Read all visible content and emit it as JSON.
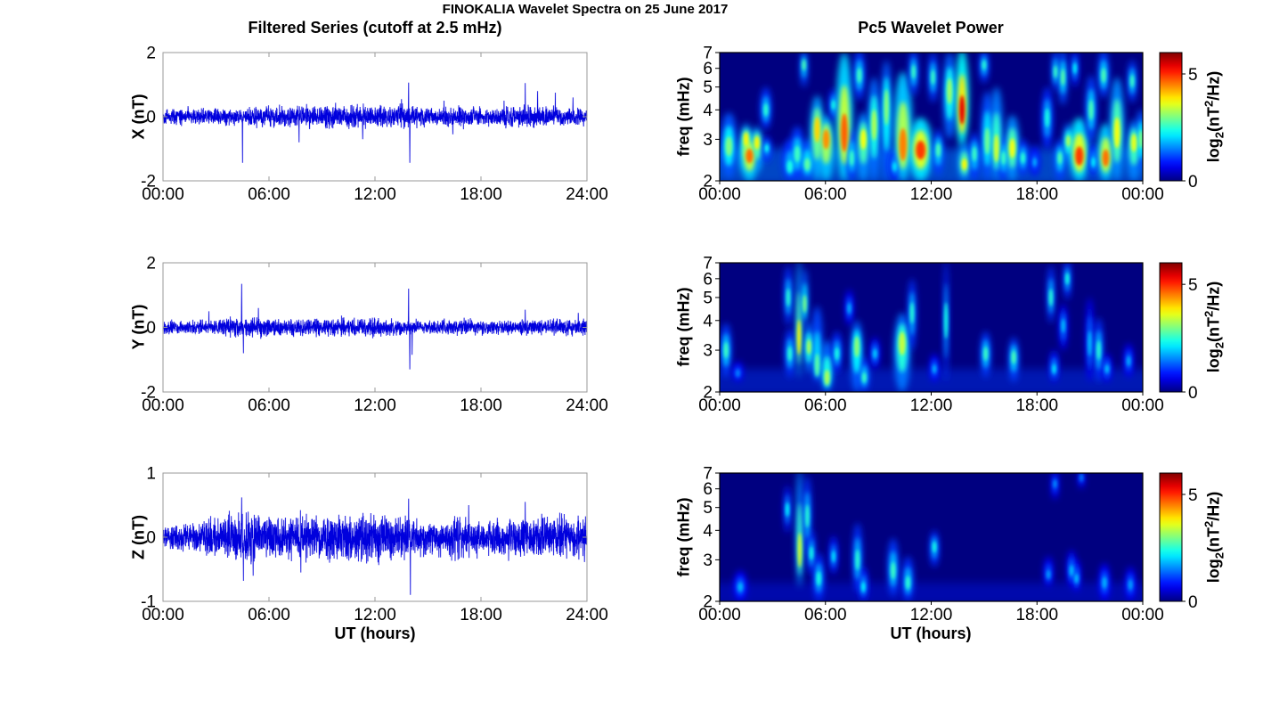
{
  "figure": {
    "title": "FINOKALIA Wavelet Spectra on 25 June 2017",
    "left_column_title": "Filtered Series (cutoff at 2.5 mHz)",
    "right_column_title": "Pc5 Wavelet Power",
    "xlabel": "UT (hours)",
    "colorbar_label": {
      "pre": "log",
      "sub": "2",
      "mid": "(nT",
      "sup": "2",
      "post": "/Hz)"
    },
    "series_color": "#0000dd",
    "heatmap_background_color": "#000080"
  },
  "chart_data": [
    {
      "id": "x-filtered-series",
      "type": "line",
      "ylabel": "X (nT)",
      "ylim": [
        -2,
        2
      ],
      "ytick_values": [
        -2,
        0,
        2
      ],
      "ytick_labels": [
        "-2",
        "0",
        "2"
      ],
      "xlim_hours": [
        0,
        24
      ],
      "xtick_hours": [
        0,
        6,
        12,
        18,
        24
      ],
      "xtick_labels": [
        "00:00",
        "06:00",
        "12:00",
        "18:00",
        "24:00"
      ],
      "line_color": "#0000dd",
      "seed": 42,
      "noise_sigma": 0.125,
      "hourly_envelope": [
        0.85,
        0.9,
        0.95,
        0.9,
        0.9,
        1.0,
        1.15,
        1.25,
        1.35,
        1.3,
        1.35,
        1.4,
        1.15,
        1.35,
        1.25,
        1.05,
        1.1,
        1.15,
        0.95,
        1.0,
        1.35,
        1.25,
        1.1,
        1.05
      ],
      "spikes": [
        [
          4.5,
          -1.44
        ],
        [
          7.7,
          -0.8
        ],
        [
          11.3,
          -0.7
        ],
        [
          13.5,
          0.55
        ],
        [
          13.9,
          1.06
        ],
        [
          13.97,
          -1.44
        ],
        [
          15.9,
          0.5
        ],
        [
          16.4,
          -0.55
        ],
        [
          19.3,
          0.5
        ],
        [
          20.5,
          1.05
        ],
        [
          21.2,
          0.8
        ],
        [
          22.2,
          0.75
        ],
        [
          23.2,
          0.6
        ]
      ]
    },
    {
      "id": "x-wavelet-power",
      "type": "heatmap",
      "ylabel": "freq (mHz)",
      "yscale": "log",
      "ylim": [
        2,
        7
      ],
      "ytick_values": [
        2,
        3,
        4,
        5,
        6,
        7
      ],
      "ytick_labels": [
        "2",
        "3",
        "4",
        "5",
        "6",
        "7"
      ],
      "xlim_hours": [
        0,
        24
      ],
      "xtick_hours": [
        0,
        6,
        12,
        18,
        24
      ],
      "xtick_labels": [
        "00:00",
        "06:00",
        "12:00",
        "18:00",
        "00:00"
      ],
      "colormap": "jet",
      "colorbar": {
        "range": [
          0,
          6
        ],
        "tick_values": [
          0,
          5
        ],
        "tick_labels": [
          "0",
          "5"
        ]
      },
      "base_band": {
        "f_lo": 2.0,
        "f_hi": 2.75,
        "value": 1.5,
        "opacity": 0.55
      },
      "features": [
        [
          0.52,
          2.05,
          3.9,
          2.8,
          3.0,
          0.45
        ],
        [
          1.5,
          2.2,
          3.5,
          3.0,
          3.8,
          0.35
        ],
        [
          1.69,
          2.0,
          3.2,
          2.55,
          4.6,
          0.5
        ],
        [
          2.11,
          2.2,
          3.4,
          2.9,
          3.8,
          0.35
        ],
        [
          2.62,
          3.3,
          5.0,
          4.0,
          2.5,
          0.3
        ],
        [
          2.67,
          2.4,
          3.1,
          2.75,
          2.3,
          0.25
        ],
        [
          3.98,
          2.0,
          3.0,
          2.3,
          2.4,
          0.4
        ],
        [
          4.4,
          2.0,
          3.4,
          2.6,
          2.6,
          0.4
        ],
        [
          4.78,
          5.0,
          7.2,
          6.2,
          2.7,
          0.2
        ],
        [
          4.97,
          2.0,
          3.0,
          2.35,
          2.8,
          0.4
        ],
        [
          5.53,
          2.0,
          4.6,
          3.3,
          4.0,
          0.4
        ],
        [
          6.04,
          2.0,
          3.8,
          3.0,
          4.4,
          0.45
        ],
        [
          6.46,
          3.6,
          4.9,
          4.2,
          2.4,
          0.25
        ],
        [
          7.07,
          2.0,
          7.0,
          3.2,
          4.7,
          0.45
        ],
        [
          7.49,
          2.0,
          3.3,
          2.5,
          2.6,
          0.3
        ],
        [
          7.92,
          4.4,
          7.2,
          5.6,
          2.6,
          0.3
        ],
        [
          8.15,
          2.0,
          3.9,
          3.0,
          3.7,
          0.4
        ],
        [
          8.76,
          2.0,
          5.5,
          3.45,
          3.3,
          0.35
        ],
        [
          9.46,
          2.0,
          6.5,
          4.1,
          3.1,
          0.3
        ],
        [
          9.93,
          2.0,
          2.7,
          2.3,
          2.1,
          0.3
        ],
        [
          10.4,
          2.0,
          5.8,
          2.85,
          4.5,
          0.5
        ],
        [
          11.0,
          4.6,
          7.2,
          5.8,
          2.6,
          0.25
        ],
        [
          11.4,
          2.0,
          3.7,
          2.7,
          4.9,
          0.65
        ],
        [
          12.1,
          4.3,
          7.0,
          5.5,
          2.6,
          0.25
        ],
        [
          12.4,
          2.1,
          3.3,
          2.7,
          2.7,
          0.3
        ],
        [
          13.04,
          3.0,
          7.0,
          4.8,
          3.2,
          0.35
        ],
        [
          13.75,
          2.8,
          7.2,
          4.0,
          5.4,
          0.35
        ],
        [
          13.88,
          2.0,
          2.9,
          2.35,
          3.8,
          0.35
        ],
        [
          14.45,
          2.0,
          3.2,
          2.6,
          2.6,
          0.3
        ],
        [
          15.0,
          5.2,
          7.2,
          6.2,
          2.5,
          0.25
        ],
        [
          15.18,
          2.0,
          4.8,
          2.95,
          2.9,
          0.35
        ],
        [
          15.7,
          2.0,
          5.0,
          2.75,
          3.5,
          0.35
        ],
        [
          16.1,
          2.0,
          3.1,
          2.5,
          2.6,
          0.3
        ],
        [
          16.6,
          2.0,
          3.8,
          2.75,
          3.7,
          0.4
        ],
        [
          17.2,
          2.1,
          3.0,
          2.5,
          2.5,
          0.3
        ],
        [
          17.87,
          2.1,
          2.8,
          2.4,
          1.8,
          0.25
        ],
        [
          18.58,
          2.7,
          5.0,
          3.7,
          2.4,
          0.3
        ],
        [
          19.05,
          4.8,
          7.2,
          5.8,
          2.6,
          0.2
        ],
        [
          19.3,
          2.0,
          3.0,
          2.5,
          2.7,
          0.3
        ],
        [
          19.47,
          4.2,
          7.2,
          5.5,
          2.8,
          0.25
        ],
        [
          19.78,
          2.4,
          3.5,
          2.95,
          3.3,
          0.3
        ],
        [
          20.15,
          5.0,
          7.2,
          6.0,
          2.2,
          0.2
        ],
        [
          20.4,
          2.0,
          3.7,
          2.55,
          4.9,
          0.55
        ],
        [
          21.07,
          2.9,
          5.6,
          4.0,
          2.7,
          0.3
        ],
        [
          21.2,
          2.1,
          2.9,
          2.4,
          2.2,
          0.25
        ],
        [
          21.78,
          4.5,
          7.2,
          5.6,
          2.7,
          0.3
        ],
        [
          21.9,
          2.0,
          3.5,
          2.5,
          4.6,
          0.45
        ],
        [
          22.54,
          2.0,
          5.5,
          3.2,
          3.7,
          0.4
        ],
        [
          23.4,
          4.3,
          6.5,
          5.3,
          2.6,
          0.25
        ],
        [
          23.5,
          2.0,
          3.6,
          2.9,
          3.6,
          0.4
        ],
        [
          23.9,
          2.2,
          4.0,
          3.0,
          3.0,
          0.3
        ]
      ]
    },
    {
      "id": "y-filtered-series",
      "type": "line",
      "ylabel": "Y (nT)",
      "ylim": [
        -2,
        2
      ],
      "ytick_values": [
        -2,
        0,
        2
      ],
      "ytick_labels": [
        "-2",
        "0",
        "2"
      ],
      "xlim_hours": [
        0,
        24
      ],
      "xtick_hours": [
        0,
        6,
        12,
        18,
        24
      ],
      "xtick_labels": [
        "00:00",
        "06:00",
        "12:00",
        "18:00",
        "24:00"
      ],
      "line_color": "#0000dd",
      "seed": 137,
      "noise_sigma": 0.105,
      "hourly_envelope": [
        0.9,
        0.85,
        0.95,
        1.05,
        1.25,
        1.4,
        1.25,
        1.15,
        1.25,
        1.15,
        1.2,
        1.3,
        1.25,
        1.1,
        1.0,
        0.95,
        1.05,
        1.15,
        1.0,
        0.9,
        1.05,
        0.95,
        1.0,
        1.1
      ],
      "spikes": [
        [
          2.6,
          0.5
        ],
        [
          4.45,
          1.35
        ],
        [
          4.55,
          -0.8
        ],
        [
          5.4,
          0.6
        ],
        [
          13.9,
          1.2
        ],
        [
          13.97,
          -1.3
        ],
        [
          14.1,
          -0.85
        ],
        [
          20.5,
          0.55
        ],
        [
          23.5,
          0.45
        ]
      ]
    },
    {
      "id": "y-wavelet-power",
      "type": "heatmap",
      "ylabel": "freq (mHz)",
      "yscale": "log",
      "ylim": [
        2,
        7
      ],
      "ytick_values": [
        2,
        3,
        4,
        5,
        6,
        7
      ],
      "ytick_labels": [
        "2",
        "3",
        "4",
        "5",
        "6",
        "7"
      ],
      "xlim_hours": [
        0,
        24
      ],
      "xtick_hours": [
        0,
        6,
        12,
        18,
        24
      ],
      "xtick_labels": [
        "00:00",
        "06:00",
        "12:00",
        "18:00",
        "00:00"
      ],
      "colormap": "jet",
      "colorbar": {
        "range": [
          0,
          6
        ],
        "tick_values": [
          0,
          5
        ],
        "tick_labels": [
          "0",
          "5"
        ]
      },
      "base_band": {
        "f_lo": 2.0,
        "f_hi": 2.5,
        "value": 1.1,
        "opacity": 0.4
      },
      "features": [
        [
          0.36,
          2.3,
          3.9,
          3.0,
          2.6,
          0.3
        ],
        [
          1.03,
          2.2,
          2.7,
          2.4,
          1.5,
          0.3
        ],
        [
          3.89,
          3.8,
          6.8,
          5.0,
          2.5,
          0.22
        ],
        [
          3.98,
          2.3,
          3.7,
          2.9,
          2.5,
          0.28
        ],
        [
          4.5,
          2.3,
          7.2,
          3.4,
          3.8,
          0.16
        ],
        [
          4.82,
          3.7,
          6.6,
          4.7,
          3.0,
          0.18
        ],
        [
          5.06,
          2.4,
          3.9,
          3.1,
          3.3,
          0.28
        ],
        [
          5.53,
          2.2,
          4.6,
          2.6,
          2.8,
          0.3
        ],
        [
          6.09,
          2.0,
          3.3,
          2.3,
          3.3,
          0.35
        ],
        [
          6.65,
          2.4,
          3.6,
          2.9,
          2.4,
          0.28
        ],
        [
          7.35,
          3.8,
          5.4,
          4.5,
          1.8,
          0.22
        ],
        [
          7.78,
          2.0,
          4.0,
          3.1,
          3.1,
          0.35
        ],
        [
          8.2,
          2.0,
          2.8,
          2.3,
          2.6,
          0.28
        ],
        [
          8.81,
          2.5,
          3.4,
          2.9,
          2.0,
          0.25
        ],
        [
          10.35,
          2.0,
          4.3,
          3.2,
          3.4,
          0.45
        ],
        [
          10.91,
          3.0,
          6.0,
          4.3,
          2.5,
          0.22
        ],
        [
          12.18,
          2.2,
          2.9,
          2.5,
          1.8,
          0.25
        ],
        [
          12.84,
          2.2,
          7.2,
          4.0,
          2.4,
          0.1
        ],
        [
          15.09,
          2.3,
          3.6,
          2.9,
          2.6,
          0.28
        ],
        [
          16.68,
          2.2,
          3.4,
          2.8,
          2.7,
          0.28
        ],
        [
          18.79,
          3.9,
          6.8,
          5.0,
          2.5,
          0.2
        ],
        [
          18.97,
          2.2,
          3.0,
          2.5,
          2.1,
          0.25
        ],
        [
          19.49,
          3.0,
          4.7,
          3.8,
          1.9,
          0.22
        ],
        [
          19.72,
          4.9,
          7.2,
          6.0,
          2.4,
          0.2
        ],
        [
          20.99,
          2.2,
          5.0,
          3.2,
          1.9,
          0.2
        ],
        [
          21.5,
          2.2,
          4.1,
          3.0,
          2.5,
          0.25
        ],
        [
          21.97,
          2.2,
          2.9,
          2.5,
          1.9,
          0.25
        ],
        [
          23.2,
          2.3,
          3.2,
          2.7,
          1.8,
          0.25
        ]
      ]
    },
    {
      "id": "z-filtered-series",
      "type": "line",
      "ylabel": "Z (nT)",
      "ylim": [
        -1,
        1
      ],
      "ytick_values": [
        -1,
        0,
        1
      ],
      "ytick_labels": [
        "-1",
        "0",
        "1"
      ],
      "xlim_hours": [
        0,
        24
      ],
      "xtick_hours": [
        0,
        6,
        12,
        18,
        24
      ],
      "xtick_labels": [
        "00:00",
        "06:00",
        "12:00",
        "18:00",
        "24:00"
      ],
      "line_color": "#0000dd",
      "seed": 2017,
      "noise_sigma": 0.12,
      "hourly_envelope": [
        0.8,
        0.8,
        0.95,
        1.15,
        1.3,
        1.45,
        1.2,
        1.3,
        1.35,
        1.3,
        1.3,
        1.35,
        1.45,
        1.3,
        1.1,
        1.0,
        1.1,
        1.25,
        1.0,
        1.05,
        1.25,
        1.15,
        1.25,
        1.15
      ],
      "spikes": [
        [
          4.45,
          0.62
        ],
        [
          4.55,
          -0.68
        ],
        [
          5.1,
          -0.6
        ],
        [
          7.8,
          -0.55
        ],
        [
          13.9,
          0.6
        ],
        [
          14.0,
          -0.9
        ],
        [
          17.3,
          0.5
        ],
        [
          20.5,
          0.55
        ]
      ]
    },
    {
      "id": "z-wavelet-power",
      "type": "heatmap",
      "ylabel": "freq (mHz)",
      "yscale": "log",
      "ylim": [
        2,
        7
      ],
      "ytick_values": [
        2,
        3,
        4,
        5,
        6,
        7
      ],
      "ytick_labels": [
        "2",
        "3",
        "4",
        "5",
        "6",
        "7"
      ],
      "xlim_hours": [
        0,
        24
      ],
      "xtick_hours": [
        0,
        6,
        12,
        18,
        24
      ],
      "xtick_labels": [
        "00:00",
        "06:00",
        "12:00",
        "18:00",
        "00:00"
      ],
      "colormap": "jet",
      "colorbar": {
        "range": [
          0,
          6
        ],
        "tick_values": [
          0,
          5
        ],
        "tick_labels": [
          "0",
          "5"
        ]
      },
      "base_band": {
        "f_lo": 2.0,
        "f_hi": 2.4,
        "value": 0.9,
        "opacity": 0.35
      },
      "features": [
        [
          1.17,
          2.0,
          2.7,
          2.3,
          1.8,
          0.35
        ],
        [
          3.84,
          3.9,
          6.2,
          4.9,
          2.2,
          0.18
        ],
        [
          4.54,
          2.3,
          7.2,
          3.3,
          3.6,
          0.2
        ],
        [
          4.97,
          3.2,
          6.8,
          4.6,
          2.5,
          0.22
        ],
        [
          5.2,
          2.6,
          4.0,
          3.2,
          2.4,
          0.22
        ],
        [
          5.62,
          2.0,
          3.2,
          2.5,
          2.4,
          0.3
        ],
        [
          6.46,
          2.6,
          3.8,
          3.1,
          2.1,
          0.22
        ],
        [
          7.82,
          2.2,
          4.3,
          3.0,
          2.5,
          0.26
        ],
        [
          8.15,
          2.0,
          2.8,
          2.3,
          2.2,
          0.25
        ],
        [
          9.84,
          2.1,
          3.7,
          2.7,
          2.6,
          0.3
        ],
        [
          10.68,
          2.0,
          3.1,
          2.4,
          2.5,
          0.3
        ],
        [
          12.18,
          2.8,
          4.0,
          3.4,
          2.4,
          0.25
        ],
        [
          18.65,
          2.3,
          3.1,
          2.6,
          1.7,
          0.25
        ],
        [
          19.02,
          5.4,
          7.2,
          6.3,
          1.6,
          0.2
        ],
        [
          19.96,
          2.3,
          3.3,
          2.7,
          1.9,
          0.25
        ],
        [
          20.24,
          2.2,
          3.0,
          2.5,
          1.9,
          0.22
        ],
        [
          20.52,
          6.0,
          7.2,
          6.7,
          1.5,
          0.18
        ],
        [
          21.83,
          2.0,
          2.9,
          2.4,
          1.8,
          0.3
        ],
        [
          23.3,
          2.0,
          2.8,
          2.35,
          1.7,
          0.28
        ]
      ]
    }
  ]
}
